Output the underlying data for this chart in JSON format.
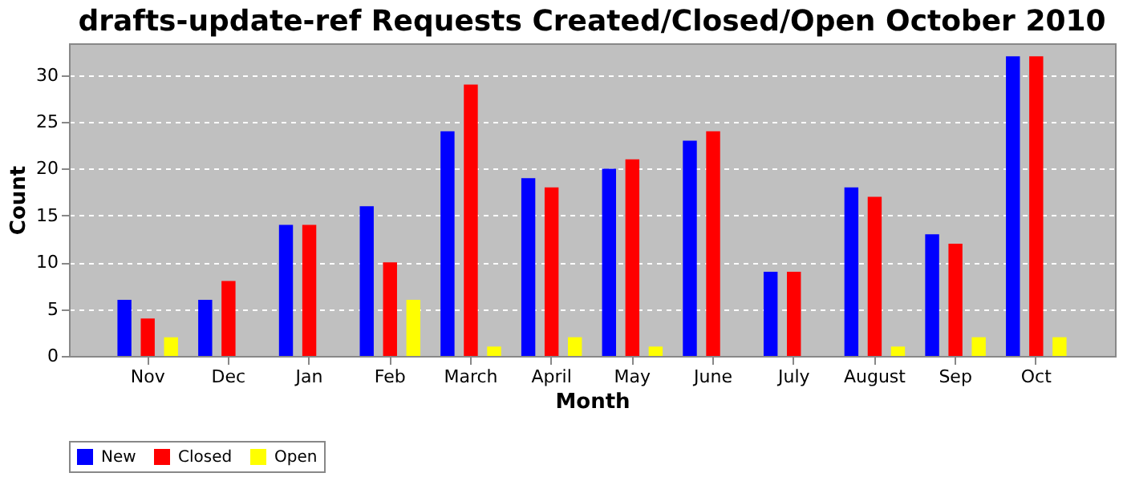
{
  "chart_data": {
    "type": "bar",
    "title": "drafts-update-ref Requests Created/Closed/Open October 2010",
    "xlabel": "Month",
    "ylabel": "Count",
    "categories": [
      "Nov",
      "Dec",
      "Jan",
      "Feb",
      "March",
      "April",
      "May",
      "June",
      "July",
      "August",
      "Sep",
      "Oct"
    ],
    "series": [
      {
        "name": "New",
        "color": "#0000ff",
        "values": [
          6,
          6,
          14,
          16,
          24,
          19,
          20,
          23,
          9,
          18,
          13,
          32
        ]
      },
      {
        "name": "Closed",
        "color": "#ff0000",
        "values": [
          4,
          8,
          14,
          10,
          29,
          18,
          21,
          24,
          9,
          17,
          12,
          32
        ]
      },
      {
        "name": "Open",
        "color": "#ffff00",
        "values": [
          2,
          0,
          0,
          6,
          1,
          2,
          1,
          0,
          0,
          1,
          2,
          2
        ]
      }
    ],
    "ylim": [
      0,
      33.4
    ],
    "yticks": [
      0,
      5,
      10,
      15,
      20,
      25,
      30
    ],
    "grid": "y",
    "legend": "bottom"
  }
}
